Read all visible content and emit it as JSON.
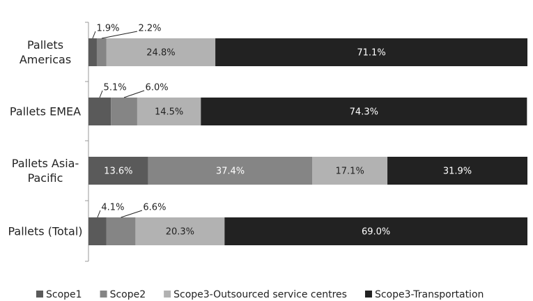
{
  "chart_data": {
    "type": "stacked-bar-horizontal",
    "categories": [
      "Pallets Americas",
      "Pallets EMEA",
      "Pallets Asia-Pacific",
      "Pallets (Total)"
    ],
    "series": [
      {
        "name": "Scope1",
        "color": "#5a5a5a",
        "values": [
          1.9,
          5.1,
          13.6,
          4.1
        ]
      },
      {
        "name": "Scope2",
        "color": "#858585",
        "values": [
          2.2,
          6.0,
          37.4,
          6.6
        ]
      },
      {
        "name": "Scope3-Outsourced service centres",
        "color": "#b2b2b2",
        "values": [
          24.8,
          14.5,
          17.1,
          20.3
        ]
      },
      {
        "name": "Scope3-Transportation",
        "color": "#222222",
        "values": [
          71.1,
          74.3,
          31.9,
          69.0
        ]
      }
    ],
    "value_labels": [
      [
        "1.9%",
        "5.1%",
        "13.6%",
        "4.1%"
      ],
      [
        "2.2%",
        "6.0%",
        "37.4%",
        "6.6%"
      ],
      [
        "24.8%",
        "14.5%",
        "17.1%",
        "20.3%"
      ],
      [
        "71.1%",
        "74.3%",
        "31.9%",
        "69.0%"
      ]
    ],
    "xlim": [
      0,
      100
    ],
    "legend": "bottom"
  }
}
